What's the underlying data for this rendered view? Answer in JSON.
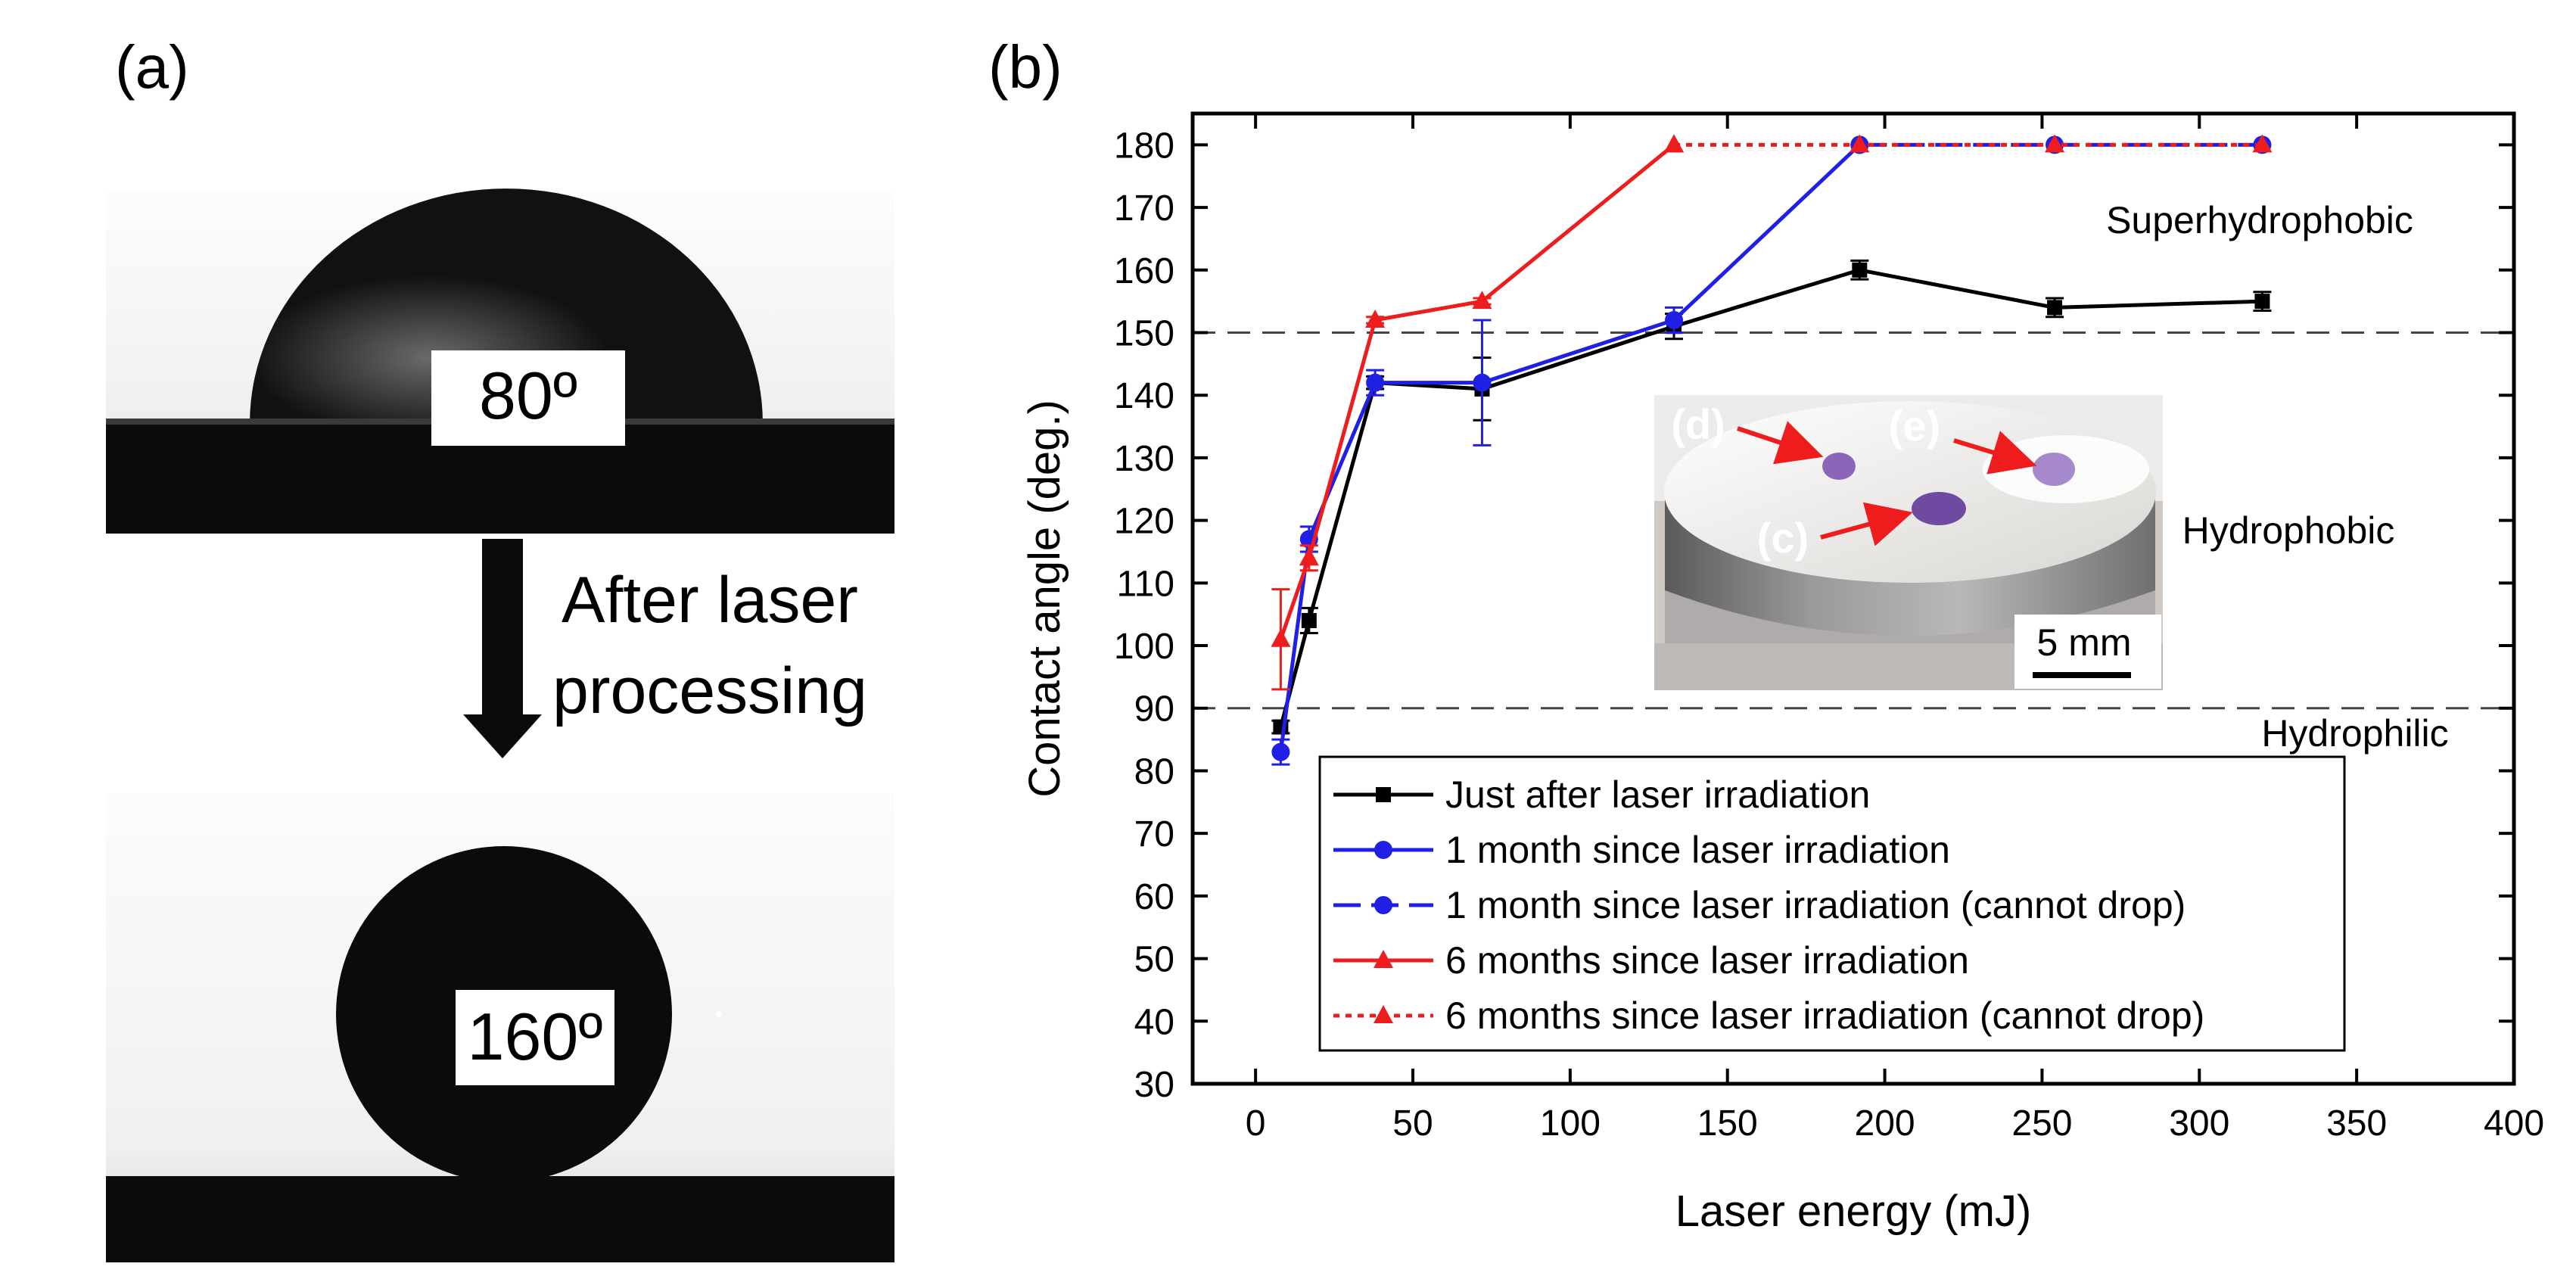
{
  "panel_a": {
    "label": "(a)",
    "before_angle": "80º",
    "after_angle": "160º",
    "arrow_text_line1": "After laser",
    "arrow_text_line2": "processing"
  },
  "panel_b": {
    "label": "(b)"
  },
  "colors": {
    "black_series": "#000000",
    "blue_series": "#1f1fe6",
    "red_series": "#ee1c1c",
    "dashed_line": "#444444"
  },
  "chart_data": {
    "type": "line",
    "title": "",
    "xlabel": "Laser energy (mJ)",
    "ylabel": "Contact angle (deg.)",
    "xlim": [
      -20,
      400
    ],
    "ylim": [
      30,
      185
    ],
    "xticks": [
      0,
      50,
      100,
      150,
      200,
      250,
      300,
      350,
      400
    ],
    "yticks": [
      30,
      40,
      50,
      60,
      70,
      80,
      90,
      100,
      110,
      120,
      130,
      140,
      150,
      160,
      170,
      180
    ],
    "reference_lines": [
      {
        "y": 150,
        "label": "Superhydrophobic"
      },
      {
        "y": 90,
        "label": "Hydrophilic"
      }
    ],
    "region_labels": [
      "Superhydrophobic",
      "Hydrophobic",
      "Hydrophilic"
    ],
    "series": [
      {
        "name": "Just after laser irradiation",
        "color": "#000000",
        "marker": "square",
        "style": "solid",
        "x": [
          8,
          17,
          38,
          72,
          133,
          192,
          254,
          320
        ],
        "y": [
          87,
          104,
          142,
          141,
          151,
          160,
          154,
          155
        ],
        "err": [
          1,
          2,
          1,
          5,
          2,
          1.5,
          1.5,
          1.5
        ]
      },
      {
        "name": "1 month since laser irradiation",
        "color": "#1f1fe6",
        "marker": "circle",
        "style": "solid",
        "x": [
          8,
          17,
          38,
          72,
          133,
          192
        ],
        "y": [
          83,
          117,
          142,
          142,
          152,
          180
        ],
        "err": [
          2,
          2,
          2,
          10,
          2,
          0
        ]
      },
      {
        "name": "1 month since laser irradiation (cannot drop)",
        "color": "#1f1fe6",
        "marker": "circle",
        "style": "dashed",
        "x": [
          192,
          254,
          320
        ],
        "y": [
          180,
          180,
          180
        ],
        "err": [
          0,
          0,
          0
        ]
      },
      {
        "name": "6 months since laser irradiation",
        "color": "#ee1c1c",
        "marker": "triangle",
        "style": "solid",
        "x": [
          8,
          17,
          38,
          72,
          133
        ],
        "y": [
          101,
          114,
          152,
          155,
          180
        ],
        "err": [
          8,
          2,
          0.5,
          0.5,
          0
        ]
      },
      {
        "name": "6 months since laser irradiation (cannot drop)",
        "color": "#ee1c1c",
        "marker": "triangle",
        "style": "dotted",
        "x": [
          133,
          192,
          254,
          320
        ],
        "y": [
          180,
          180,
          180,
          180
        ],
        "err": [
          0,
          0,
          0,
          0
        ]
      }
    ],
    "inset": {
      "labels": [
        "(d)",
        "(e)",
        "(c)"
      ],
      "scale_bar": "5 mm"
    }
  }
}
